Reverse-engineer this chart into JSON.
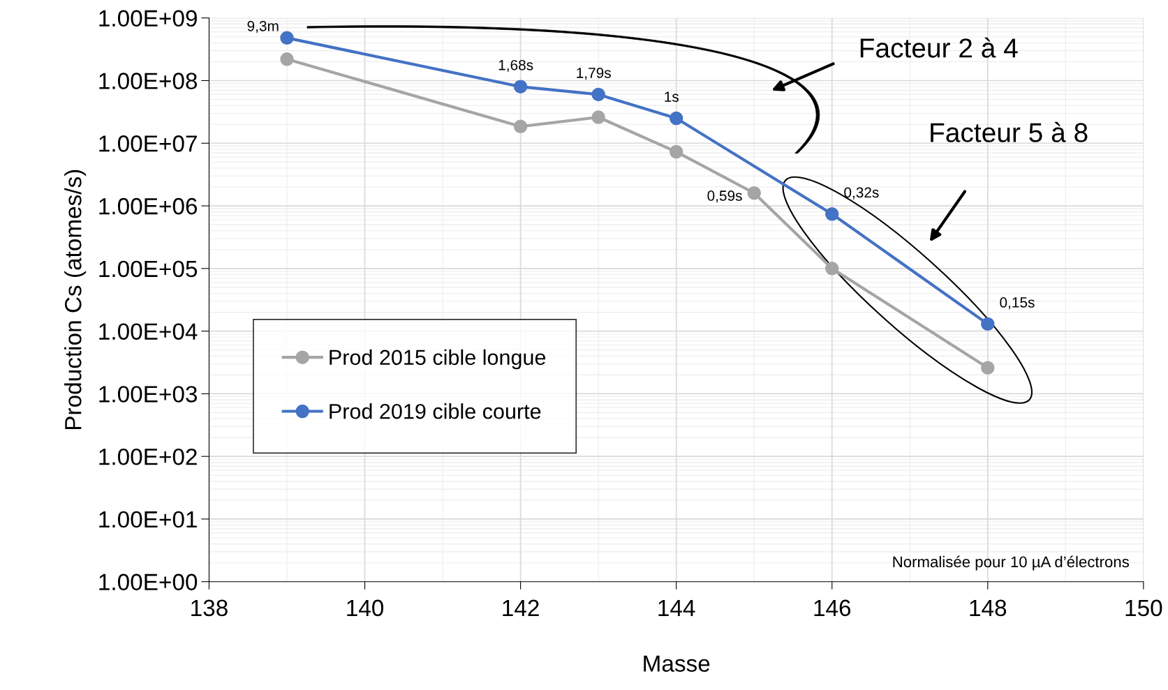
{
  "chart_data": {
    "type": "line",
    "xlabel": "Masse",
    "ylabel": "Production Cs (atomes/s)",
    "log": "y",
    "grid": true,
    "legend": "left",
    "marker": "circle",
    "line_style": "solid",
    "xlim": [
      138,
      150
    ],
    "xticks": [
      138,
      140,
      142,
      144,
      146,
      148,
      150
    ],
    "ylim": [
      1,
      1000000000
    ],
    "yticks": [
      {
        "value": 1,
        "label": "1.00E+00"
      },
      {
        "value": 10,
        "label": "1.00E+01"
      },
      {
        "value": 100,
        "label": "1.00E+02"
      },
      {
        "value": 1000,
        "label": "1.00E+03"
      },
      {
        "value": 10000,
        "label": "1.00E+04"
      },
      {
        "value": 100000,
        "label": "1.00E+05"
      },
      {
        "value": 1000000,
        "label": "1.00E+06"
      },
      {
        "value": 10000000,
        "label": "1.00E+07"
      },
      {
        "value": 100000000,
        "label": "1.00E+08"
      },
      {
        "value": 1000000000,
        "label": "1.00E+09"
      }
    ],
    "series": [
      {
        "name": "Prod 2015 cible longue",
        "color": "#a5a5a5",
        "x": [
          139,
          142,
          143,
          144,
          145,
          146,
          148
        ],
        "values": [
          220000000,
          18500000,
          26000000,
          7300000,
          1600000,
          100000,
          2600
        ]
      },
      {
        "name": "Prod 2019 cible courte",
        "color": "#4472c4",
        "x": [
          139,
          142,
          143,
          144,
          146,
          148
        ],
        "values": [
          480000000,
          80000000,
          60000000,
          25000000,
          740000,
          13000
        ]
      }
    ],
    "annotations": [
      {
        "text": "9,3m",
        "x": 139,
        "y": 480000000
      },
      {
        "text": "1,68s",
        "x": 142,
        "y": 80000000
      },
      {
        "text": "1,79s",
        "x": 143,
        "y": 60000000
      },
      {
        "text": "1s",
        "x": 144,
        "y": 25000000
      },
      {
        "text": "0,59s",
        "x": 145,
        "y": 1600000
      },
      {
        "text": "0,32s",
        "x": 146,
        "y": 740000
      },
      {
        "text": "0,15s",
        "x": 148,
        "y": 13000
      },
      "Facteur 2 à 4",
      "Facteur 5 à 8",
      "Normalisée pour 10 µA d’électrons"
    ]
  }
}
